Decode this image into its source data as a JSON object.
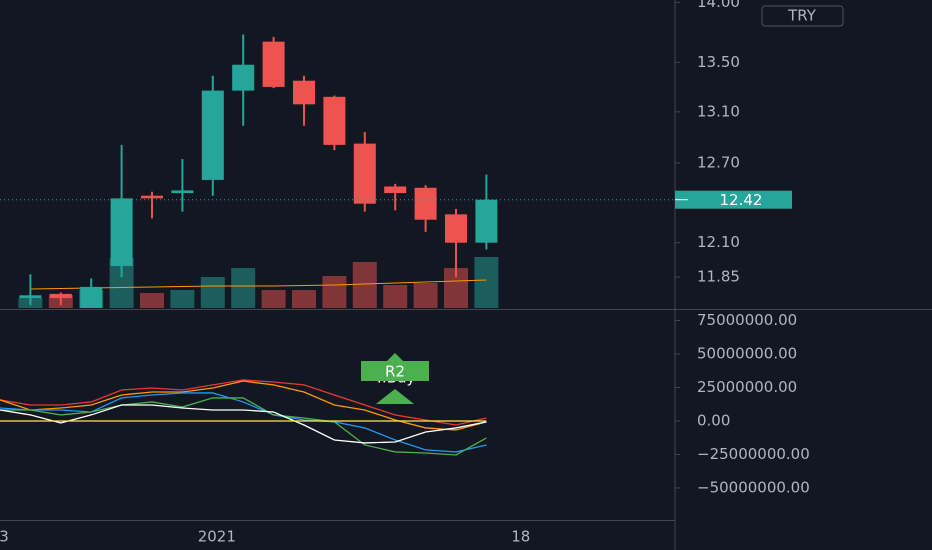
{
  "chart_data": [
    {
      "type": "candlestick",
      "categories": [
        "3",
        null,
        null,
        null,
        null,
        null,
        null,
        "2021",
        null,
        null,
        null,
        null,
        null,
        null,
        null,
        null,
        null,
        "18"
      ],
      "open": [
        null,
        11.7,
        11.73,
        11.62,
        11.93,
        12.45,
        12.47,
        12.57,
        13.27,
        13.67,
        13.35,
        13.22,
        12.85,
        12.52,
        12.51,
        12.31,
        12.1,
        null
      ],
      "high": [
        null,
        11.87,
        11.74,
        11.84,
        12.84,
        12.48,
        12.73,
        13.39,
        13.73,
        13.71,
        13.39,
        13.23,
        12.94,
        12.54,
        12.53,
        12.35,
        12.61,
        null
      ],
      "low": [
        null,
        11.65,
        11.65,
        11.6,
        11.85,
        12.28,
        12.33,
        12.45,
        12.99,
        13.29,
        12.99,
        12.8,
        12.33,
        12.34,
        12.18,
        11.85,
        12.05,
        null
      ],
      "close": [
        null,
        11.72,
        11.7,
        11.78,
        12.43,
        12.43,
        12.49,
        13.27,
        13.48,
        13.3,
        13.16,
        12.84,
        12.39,
        12.47,
        12.27,
        12.1,
        12.42,
        null
      ],
      "volume": [
        null,
        10000000,
        13000000,
        18000000,
        50000000,
        15000000,
        18000000,
        31000000,
        40000000,
        18000000,
        18000000,
        32000000,
        46000000,
        23000000,
        25000000,
        40000000,
        51000000,
        null
      ],
      "volume_ma": [
        null,
        19000000,
        19500000,
        20000000,
        20500000,
        21000000,
        21500000,
        22000000,
        22000000,
        22000000,
        22500000,
        23000000,
        24000000,
        25000000,
        26000000,
        27000000,
        28000000,
        null
      ],
      "ylim": [
        11.63,
        14.02
      ],
      "yticks": [
        {
          "value": 14,
          "label": "14.00"
        },
        {
          "value": 13.5,
          "label": "13.50"
        },
        {
          "value": 13.1,
          "label": "13.10"
        },
        {
          "value": 12.7,
          "label": "12.70"
        },
        {
          "value": 12.1,
          "label": "12.10"
        },
        {
          "value": 11.85,
          "label": "11.85"
        }
      ],
      "log_scale": true,
      "current_price": 12.42,
      "currency": "TRY",
      "up_color": "#26a69a",
      "down_color": "#ef5350",
      "volume_up_color": "rgba(38,166,154,0.5)",
      "volume_down_color": "rgba(239,83,80,0.5)",
      "volume_ma_color": "#ff9800"
    },
    {
      "type": "line",
      "series": [
        {
          "color": "#e53935",
          "values": [
            15700000,
            11900000,
            11900000,
            14200000,
            23100000,
            24600000,
            23100000,
            26900000,
            30600000,
            29100000,
            26900000,
            19400000,
            11900000,
            4500000,
            700000,
            -3000000,
            2200000,
            null
          ]
        },
        {
          "color": "#ff9800",
          "values": [
            15700000,
            8200000,
            9700000,
            11900000,
            19400000,
            21600000,
            21600000,
            24600000,
            29800000,
            26900000,
            21600000,
            11900000,
            8200000,
            700000,
            -5200000,
            -6700000,
            -700000,
            null
          ]
        },
        {
          "color": "#2196f3",
          "values": [
            9700000,
            8200000,
            8200000,
            6700000,
            17200000,
            19400000,
            20900000,
            20900000,
            14200000,
            4500000,
            700000,
            -700000,
            -5200000,
            -14200000,
            -21600000,
            -23100000,
            -17900000,
            null
          ]
        },
        {
          "color": "#4caf50",
          "values": [
            8200000,
            8200000,
            4500000,
            6700000,
            11900000,
            14200000,
            10400000,
            17200000,
            17200000,
            4500000,
            2200000,
            -700000,
            -17900000,
            -23100000,
            -23900000,
            -25400000,
            -12700000,
            null
          ]
        },
        {
          "color": "#ffffff",
          "values": [
            8200000,
            4500000,
            -1500000,
            4500000,
            11900000,
            11900000,
            9700000,
            8200000,
            8200000,
            6700000,
            -3000000,
            -14200000,
            -16400000,
            -15700000,
            -8200000,
            -5200000,
            -700000,
            null
          ]
        },
        {
          "color": "#ffeb3b",
          "values": [
            0,
            0,
            0,
            0,
            0,
            0,
            0,
            0,
            0,
            0,
            0,
            0,
            0,
            0,
            0,
            0,
            0,
            null
          ]
        }
      ],
      "ylim": [
        -73900000,
        82800000
      ],
      "yticks": [
        {
          "value": 75000000,
          "label": "75000000.00"
        },
        {
          "value": 50000000,
          "label": "50000000.00"
        },
        {
          "value": 25000000,
          "label": "25000000.00"
        },
        {
          "value": 0,
          "label": "0.00"
        },
        {
          "value": -25000000,
          "label": "−25000000.00"
        },
        {
          "value": -50000000,
          "label": "−50000000.00"
        }
      ],
      "annotations": [
        "T.Buy",
        "R2"
      ]
    }
  ]
}
